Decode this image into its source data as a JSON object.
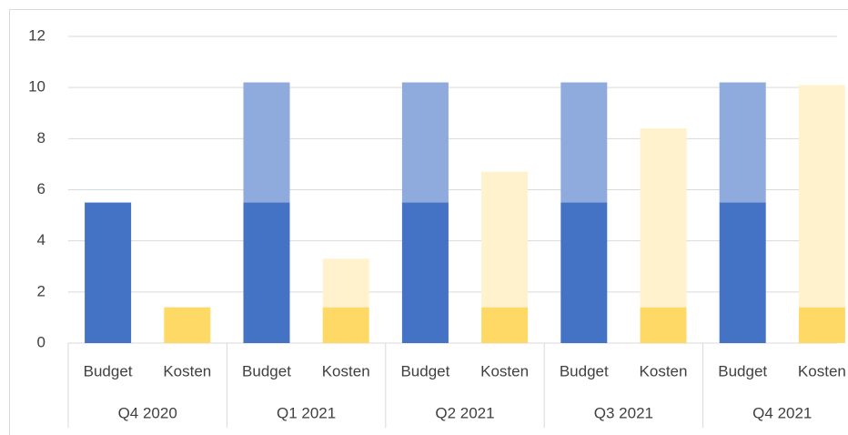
{
  "chart_data": {
    "type": "stacked_bar",
    "categories": [
      "Budget",
      "Kosten",
      "Budget",
      "Kosten",
      "Budget",
      "Kosten",
      "Budget",
      "Kosten",
      "Budget",
      "Kosten"
    ],
    "groups": [
      "Q4 2020",
      "Q1 2021",
      "Q2 2021",
      "Q3 2021",
      "Q4 2021"
    ],
    "series": [
      {
        "color": "#4472c4",
        "values": [
          5.5,
          null,
          5.5,
          null,
          5.5,
          null,
          5.5,
          null,
          5.5,
          null
        ]
      },
      {
        "color": "#8faadc",
        "values": [
          null,
          null,
          4.7,
          null,
          4.7,
          null,
          4.7,
          null,
          4.7,
          null
        ]
      },
      {
        "color": "#ffd966",
        "values": [
          null,
          1.4,
          null,
          1.4,
          null,
          1.4,
          null,
          1.4,
          null,
          1.4
        ]
      },
      {
        "color": "#fff2cc",
        "values": [
          null,
          null,
          null,
          1.9,
          null,
          5.3,
          null,
          7.0,
          null,
          8.7
        ]
      }
    ],
    "ylim": [
      0,
      12
    ],
    "yticks": [
      0,
      2,
      4,
      6,
      8,
      10,
      12
    ],
    "grid": true
  }
}
